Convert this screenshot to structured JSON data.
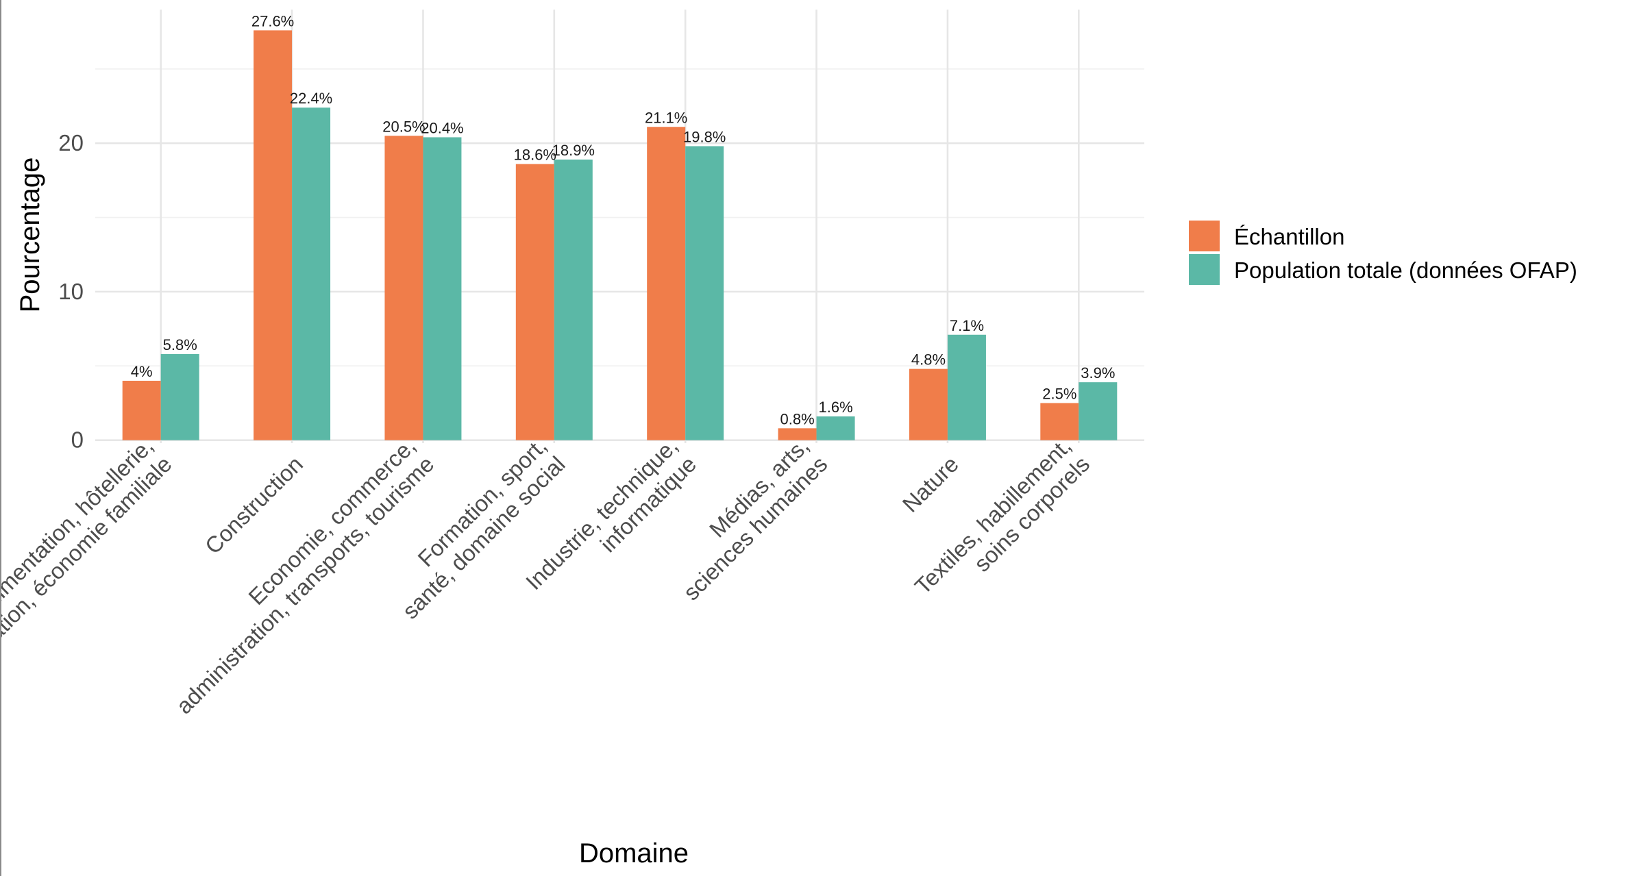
{
  "chart_data": {
    "type": "bar",
    "categories": [
      [
        "Alimentation, hôtellerie,",
        "restauration, économie familiale"
      ],
      [
        "Construction"
      ],
      [
        "Economie, commerce,",
        "administration, transports, tourisme"
      ],
      [
        "Formation, sport,",
        "santé, domaine social"
      ],
      [
        "Industrie, technique,",
        "informatique"
      ],
      [
        "Médias, arts,",
        "sciences humaines"
      ],
      [
        "Nature"
      ],
      [
        "Textiles, habillement,",
        "soins corporels"
      ]
    ],
    "series": [
      {
        "name": "Échantillon",
        "color": "#F07D4A",
        "values": [
          4.0,
          27.6,
          20.5,
          18.6,
          21.1,
          0.8,
          4.8,
          2.5
        ],
        "labels": [
          "4%",
          "27.6%",
          "20.5%",
          "18.6%",
          "21.1%",
          "0.8%",
          "4.8%",
          "2.5%"
        ]
      },
      {
        "name": "Population totale (données OFAP)",
        "color": "#5BB8A6",
        "values": [
          5.8,
          22.4,
          20.4,
          18.9,
          19.8,
          1.6,
          7.1,
          3.9
        ],
        "labels": [
          "5.8%",
          "22.4%",
          "20.4%",
          "18.9%",
          "19.8%",
          "1.6%",
          "7.1%",
          "3.9%"
        ]
      }
    ],
    "xlabel": "Domaine",
    "ylabel": "Pourcentage",
    "ylim": [
      -0.2,
      29
    ],
    "yticks": [
      0,
      10,
      20
    ],
    "grid": true,
    "legend": "right"
  }
}
